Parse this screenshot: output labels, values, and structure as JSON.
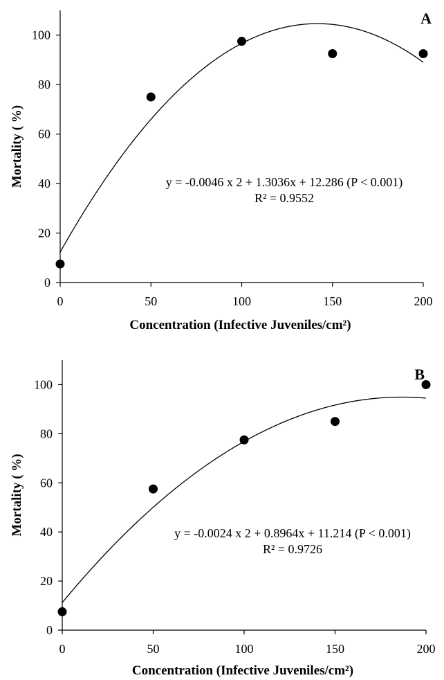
{
  "chart_data": [
    {
      "type": "scatter",
      "panel_label": "A",
      "xlabel": "Concentration (Infective Juveniles/cm²)",
      "ylabel": "Mortality ( %)",
      "xlim": [
        0,
        200
      ],
      "ylim": [
        0,
        110
      ],
      "xticks": [
        0,
        50,
        100,
        150,
        200
      ],
      "yticks": [
        0,
        20,
        40,
        60,
        80,
        100
      ],
      "x": [
        0,
        50,
        100,
        150,
        200
      ],
      "y": [
        7.5,
        75,
        97.5,
        92.5,
        92.5
      ],
      "fit": {
        "a": -0.0046,
        "b": 1.3036,
        "c": 12.286
      },
      "equation": "y = -0.0046 x 2 + 1.3036x + 12.286 (P < 0.001)",
      "r2": "R² = 0.9552",
      "grid": false
    },
    {
      "type": "scatter",
      "panel_label": "B",
      "xlabel": "Concentration (Infective Juveniles/cm²)",
      "ylabel": "Mortality ( %)",
      "xlim": [
        0,
        200
      ],
      "ylim": [
        0,
        110
      ],
      "xticks": [
        0,
        50,
        100,
        150,
        200
      ],
      "yticks": [
        0,
        20,
        40,
        60,
        80,
        100
      ],
      "x": [
        0,
        50,
        100,
        150,
        200
      ],
      "y": [
        7.5,
        57.5,
        77.5,
        85,
        100
      ],
      "fit": {
        "a": -0.0024,
        "b": 0.8964,
        "c": 11.214
      },
      "equation": "y = -0.0024 x 2 + 0.8964x + 11.214 (P < 0.001)",
      "r2": "R² = 0.9726",
      "grid": false
    }
  ]
}
